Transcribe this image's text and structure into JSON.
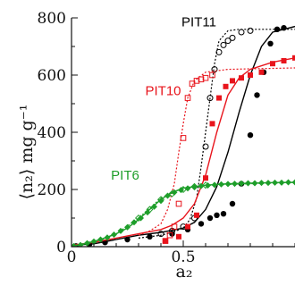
{
  "chart_data": {
    "type": "scatter",
    "title": "",
    "xlabel": "a₂",
    "ylabel": "⟨n₂⟩  mg g⁻¹",
    "xlim": [
      0,
      1.0
    ],
    "ylim": [
      0,
      800
    ],
    "x_ticks": [
      0,
      0.5
    ],
    "x_tick_labels": [
      "0",
      "0.5"
    ],
    "y_ticks": [
      0,
      200,
      400,
      600,
      800
    ],
    "y_tick_labels": [
      "0",
      "200",
      "400",
      "600",
      "800"
    ],
    "grid": false,
    "series": [
      {
        "name": "PIT11",
        "color": "#000000",
        "label_x": 0.57,
        "label_y": 770,
        "fit_x": [
          0,
          0.1,
          0.2,
          0.3,
          0.4,
          0.5,
          0.55,
          0.6,
          0.65,
          0.7,
          0.75,
          0.8,
          0.85,
          0.9,
          1.0
        ],
        "fit_y": [
          5,
          10,
          25,
          40,
          50,
          65,
          85,
          130,
          210,
          330,
          470,
          600,
          700,
          750,
          770
        ],
        "fit_style": "solid",
        "points_filled": [
          [
            0.02,
            2
          ],
          [
            0.08,
            8
          ],
          [
            0.15,
            15
          ],
          [
            0.25,
            25
          ],
          [
            0.35,
            35
          ],
          [
            0.45,
            45
          ],
          [
            0.52,
            60
          ],
          [
            0.58,
            80
          ],
          [
            0.62,
            100
          ],
          [
            0.65,
            110
          ],
          [
            0.68,
            115
          ],
          [
            0.72,
            150
          ],
          [
            0.76,
            220
          ],
          [
            0.8,
            390
          ],
          [
            0.83,
            530
          ],
          [
            0.86,
            610
          ],
          [
            0.89,
            710
          ],
          [
            0.92,
            760
          ],
          [
            0.95,
            765
          ]
        ],
        "dotted_x": [
          0.3,
          0.4,
          0.45,
          0.5,
          0.53,
          0.56,
          0.58,
          0.6,
          0.62,
          0.64,
          0.66,
          0.7,
          0.75,
          0.85,
          1.0
        ],
        "dotted_y": [
          30,
          40,
          50,
          65,
          95,
          170,
          280,
          400,
          520,
          640,
          720,
          755,
          760,
          760,
          760
        ],
        "points_open": [
          [
            0.4,
            45
          ],
          [
            0.45,
            55
          ],
          [
            0.5,
            70
          ],
          [
            0.55,
            100
          ],
          [
            0.6,
            350
          ],
          [
            0.62,
            520
          ],
          [
            0.64,
            620
          ],
          [
            0.66,
            680
          ],
          [
            0.68,
            705
          ],
          [
            0.7,
            720
          ],
          [
            0.72,
            730
          ],
          [
            0.76,
            750
          ],
          [
            0.8,
            755
          ]
        ]
      },
      {
        "name": "PIT10",
        "color": "#e8141c",
        "label_x": 0.41,
        "label_y": 530,
        "fit_x": [
          0,
          0.1,
          0.2,
          0.3,
          0.4,
          0.45,
          0.5,
          0.55,
          0.6,
          0.65,
          0.7,
          0.75,
          0.8,
          0.9,
          1.0
        ],
        "fit_y": [
          5,
          15,
          30,
          45,
          60,
          75,
          100,
          150,
          250,
          400,
          530,
          590,
          620,
          645,
          660
        ],
        "fit_style": "solid",
        "points_filled": [
          [
            0.42,
            20
          ],
          [
            0.48,
            35
          ],
          [
            0.52,
            70
          ],
          [
            0.56,
            110
          ],
          [
            0.6,
            240
          ],
          [
            0.63,
            430
          ],
          [
            0.66,
            520
          ],
          [
            0.69,
            560
          ],
          [
            0.72,
            580
          ],
          [
            0.76,
            590
          ],
          [
            0.8,
            600
          ],
          [
            0.85,
            610
          ],
          [
            0.9,
            640
          ],
          [
            0.95,
            650
          ],
          [
            1.0,
            660
          ]
        ],
        "dotted_x": [
          0.3,
          0.35,
          0.4,
          0.43,
          0.46,
          0.48,
          0.5,
          0.52,
          0.55,
          0.6,
          0.7,
          0.8,
          1.0
        ],
        "dotted_y": [
          40,
          55,
          80,
          130,
          220,
          330,
          430,
          520,
          580,
          610,
          620,
          622,
          625
        ],
        "points_open": [
          [
            0.42,
            20
          ],
          [
            0.44,
            40
          ],
          [
            0.46,
            70
          ],
          [
            0.48,
            150
          ],
          [
            0.5,
            380
          ],
          [
            0.52,
            520
          ],
          [
            0.54,
            570
          ],
          [
            0.56,
            580
          ],
          [
            0.58,
            585
          ],
          [
            0.6,
            590
          ],
          [
            0.63,
            600
          ]
        ]
      },
      {
        "name": "PIT6",
        "color": "#1e9e2a",
        "label_x": 0.24,
        "label_y": 235,
        "fit_x": [
          0,
          0.05,
          0.1,
          0.15,
          0.2,
          0.25,
          0.3,
          0.35,
          0.4,
          0.45,
          0.5,
          0.6,
          0.7,
          0.8,
          0.9,
          1.0
        ],
        "fit_y": [
          2,
          8,
          18,
          30,
          45,
          65,
          95,
          130,
          165,
          190,
          205,
          215,
          220,
          222,
          224,
          225
        ],
        "fit_style": "solid",
        "points_filled": [
          [
            0.01,
            2
          ],
          [
            0.04,
            6
          ],
          [
            0.07,
            12
          ],
          [
            0.1,
            18
          ],
          [
            0.13,
            25
          ],
          [
            0.16,
            32
          ],
          [
            0.19,
            42
          ],
          [
            0.22,
            55
          ],
          [
            0.25,
            68
          ],
          [
            0.28,
            85
          ],
          [
            0.31,
            100
          ],
          [
            0.34,
            120
          ],
          [
            0.37,
            140
          ],
          [
            0.4,
            160
          ],
          [
            0.43,
            178
          ],
          [
            0.46,
            190
          ],
          [
            0.49,
            198
          ],
          [
            0.52,
            204
          ],
          [
            0.55,
            208
          ],
          [
            0.58,
            212
          ],
          [
            0.61,
            214
          ],
          [
            0.64,
            216
          ],
          [
            0.67,
            218
          ],
          [
            0.7,
            219
          ],
          [
            0.73,
            220
          ],
          [
            0.76,
            221
          ],
          [
            0.79,
            222
          ],
          [
            0.82,
            222
          ],
          [
            0.85,
            223
          ],
          [
            0.88,
            223
          ],
          [
            0.91,
            224
          ],
          [
            0.94,
            224
          ],
          [
            0.97,
            225
          ],
          [
            1.0,
            225
          ]
        ],
        "dotted_x": [
          0,
          0.1,
          0.2,
          0.3,
          0.4,
          0.5,
          0.6,
          1.0
        ],
        "dotted_y": [
          2,
          18,
          45,
          100,
          170,
          205,
          215,
          225
        ],
        "points_open": [
          [
            0.3,
            100
          ],
          [
            0.35,
            130
          ],
          [
            0.4,
            165
          ],
          [
            0.45,
            185
          ],
          [
            0.5,
            200
          ],
          [
            0.55,
            210
          ],
          [
            0.6,
            215
          ]
        ]
      }
    ]
  }
}
